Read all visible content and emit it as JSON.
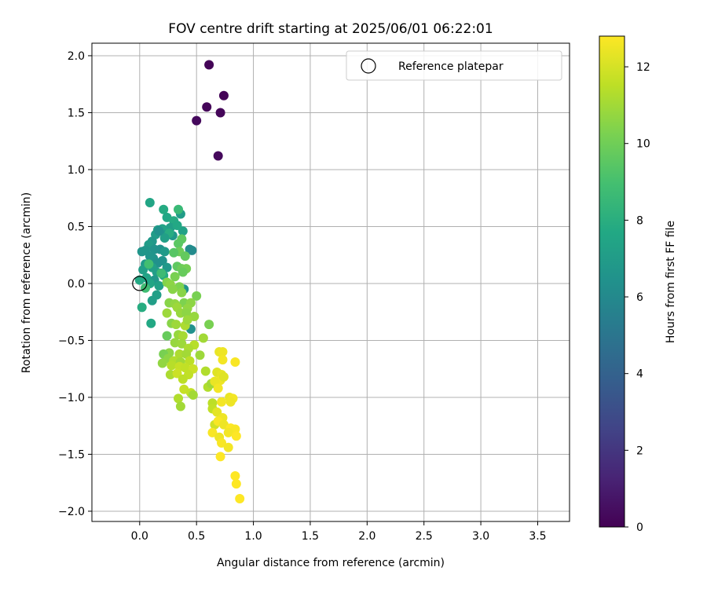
{
  "chart_data": {
    "type": "scatter",
    "title": "FOV centre drift starting at 2025/06/01 06:22:01",
    "xlabel": "Angular distance from reference (arcmin)",
    "ylabel": "Rotation from reference (arcmin)",
    "xlim": [
      -0.42,
      3.78
    ],
    "ylim": [
      -2.09,
      2.11
    ],
    "xticks": [
      "0.0",
      "0.5",
      "1.0",
      "1.5",
      "2.0",
      "2.5",
      "3.0",
      "3.5"
    ],
    "xtick_values": [
      0,
      0.5,
      1.0,
      1.5,
      2.0,
      2.5,
      3.0,
      3.5
    ],
    "yticks": [
      "2.0",
      "1.5",
      "1.0",
      "0.5",
      "0.0",
      "−0.5",
      "−1.0",
      "−1.5",
      "−2.0"
    ],
    "ytick_values": [
      2.0,
      1.5,
      1.0,
      0.5,
      0.0,
      -0.5,
      -1.0,
      -1.5,
      -2.0
    ],
    "grid": true,
    "legend": {
      "position": "top-right",
      "entries": [
        "Reference platepar"
      ]
    },
    "reference": {
      "x": 0.0,
      "y": 0.0
    },
    "colorbar": {
      "label": "Hours from first FF file",
      "colormap": "viridis",
      "range": [
        0,
        12.8
      ],
      "ticks": [
        "0",
        "2",
        "4",
        "6",
        "8",
        "10",
        "12"
      ],
      "tick_values": [
        0,
        2,
        4,
        6,
        8,
        10,
        12
      ]
    },
    "series": [
      {
        "points": [
          [
            0.61,
            1.92,
            0.1
          ],
          [
            0.74,
            1.65,
            0.1
          ],
          [
            0.59,
            1.55,
            0.2
          ],
          [
            0.71,
            1.5,
            0.2
          ],
          [
            0.5,
            1.43,
            0.3
          ],
          [
            0.69,
            1.12,
            0.3
          ],
          [
            0.09,
            0.71,
            7.5
          ],
          [
            0.21,
            0.65,
            7.8
          ],
          [
            0.36,
            0.61,
            7.0
          ],
          [
            0.34,
            0.65,
            8.6
          ],
          [
            0.24,
            0.58,
            7.6
          ],
          [
            0.3,
            0.55,
            7.8
          ],
          [
            0.27,
            0.49,
            7.2
          ],
          [
            0.2,
            0.48,
            7.4
          ],
          [
            0.16,
            0.47,
            7.0
          ],
          [
            0.38,
            0.46,
            7.3
          ],
          [
            0.24,
            0.43,
            6.6
          ],
          [
            0.29,
            0.42,
            6.8
          ],
          [
            0.14,
            0.43,
            7.0
          ],
          [
            0.33,
            0.51,
            7.7
          ],
          [
            0.26,
            0.44,
            7.9
          ],
          [
            0.22,
            0.4,
            7.2
          ],
          [
            0.17,
            0.46,
            6.4
          ],
          [
            0.44,
            0.3,
            6.3
          ],
          [
            0.46,
            0.29,
            6.1
          ],
          [
            0.11,
            0.37,
            6.8
          ],
          [
            0.08,
            0.34,
            7.0
          ],
          [
            0.13,
            0.3,
            6.5
          ],
          [
            0.02,
            0.28,
            6.6
          ],
          [
            0.05,
            0.29,
            6.7
          ],
          [
            0.18,
            0.3,
            6.4
          ],
          [
            0.22,
            0.28,
            6.9
          ],
          [
            0.12,
            0.22,
            6.5
          ],
          [
            0.2,
            0.2,
            6.5
          ],
          [
            0.09,
            0.24,
            6.6
          ],
          [
            0.16,
            0.18,
            6.4
          ],
          [
            0.05,
            0.17,
            6.9
          ],
          [
            0.11,
            0.14,
            7.2
          ],
          [
            0.24,
            0.14,
            6.8
          ],
          [
            0.03,
            0.12,
            7.2
          ],
          [
            0.15,
            0.1,
            7.1
          ],
          [
            0.21,
            0.07,
            7.8
          ],
          [
            0.06,
            0.05,
            7.4
          ],
          [
            0.13,
            0.03,
            6.8
          ],
          [
            0.0,
            0.03,
            7.7
          ],
          [
            0.09,
            0.0,
            7.5
          ],
          [
            0.17,
            -0.02,
            7.3
          ],
          [
            0.05,
            -0.04,
            8.8
          ],
          [
            0.15,
            -0.1,
            7.2
          ],
          [
            0.11,
            -0.15,
            7.1
          ],
          [
            0.02,
            -0.21,
            7.9
          ],
          [
            0.1,
            -0.35,
            7.7
          ],
          [
            0.39,
            -0.05,
            6.5
          ],
          [
            0.45,
            -0.4,
            6.4
          ],
          [
            0.08,
            0.17,
            8.9
          ],
          [
            0.19,
            0.09,
            8.7
          ],
          [
            0.37,
            0.39,
            9.6
          ],
          [
            0.34,
            0.35,
            9.5
          ],
          [
            0.35,
            0.28,
            9.9
          ],
          [
            0.3,
            0.27,
            9.4
          ],
          [
            0.4,
            0.24,
            9.7
          ],
          [
            0.33,
            0.15,
            9.6
          ],
          [
            0.37,
            0.13,
            9.9
          ],
          [
            0.41,
            0.13,
            10.1
          ],
          [
            0.38,
            0.1,
            9.8
          ],
          [
            0.31,
            0.06,
            10.2
          ],
          [
            0.24,
            0.01,
            10.4
          ],
          [
            0.27,
            -0.01,
            10.6
          ],
          [
            0.35,
            -0.03,
            10.3
          ],
          [
            0.29,
            -0.05,
            10.5
          ],
          [
            0.37,
            -0.08,
            10.5
          ],
          [
            0.5,
            -0.11,
            10.2
          ],
          [
            0.26,
            -0.17,
            10.5
          ],
          [
            0.31,
            -0.18,
            10.7
          ],
          [
            0.39,
            -0.17,
            10.3
          ],
          [
            0.45,
            -0.17,
            10.6
          ],
          [
            0.33,
            -0.21,
            10.9
          ],
          [
            0.42,
            -0.22,
            10.7
          ],
          [
            0.24,
            -0.26,
            10.9
          ],
          [
            0.36,
            -0.26,
            10.8
          ],
          [
            0.41,
            -0.26,
            10.6
          ],
          [
            0.48,
            -0.29,
            10.8
          ],
          [
            0.28,
            -0.35,
            10.5
          ],
          [
            0.32,
            -0.36,
            10.9
          ],
          [
            0.4,
            -0.37,
            11.2
          ],
          [
            0.61,
            -0.36,
            10.2
          ],
          [
            0.42,
            -0.32,
            10.9
          ],
          [
            0.24,
            -0.46,
            9.8
          ],
          [
            0.34,
            -0.45,
            10.8
          ],
          [
            0.38,
            -0.46,
            11.1
          ],
          [
            0.56,
            -0.48,
            11.0
          ],
          [
            0.31,
            -0.52,
            10.8
          ],
          [
            0.37,
            -0.53,
            10.9
          ],
          [
            0.48,
            -0.54,
            11.4
          ],
          [
            0.43,
            -0.57,
            11.2
          ],
          [
            0.26,
            -0.61,
            10.6
          ],
          [
            0.21,
            -0.62,
            10.2
          ],
          [
            0.35,
            -0.62,
            11.2
          ],
          [
            0.41,
            -0.62,
            11.0
          ],
          [
            0.53,
            -0.63,
            10.9
          ],
          [
            0.25,
            -0.66,
            10.6
          ],
          [
            0.3,
            -0.68,
            11.3
          ],
          [
            0.36,
            -0.69,
            11.0
          ],
          [
            0.44,
            -0.68,
            11.5
          ],
          [
            0.2,
            -0.7,
            10.7
          ],
          [
            0.28,
            -0.72,
            11.4
          ],
          [
            0.35,
            -0.73,
            11.7
          ],
          [
            0.4,
            -0.74,
            11.6
          ],
          [
            0.47,
            -0.75,
            11.8
          ],
          [
            0.58,
            -0.77,
            11.3
          ],
          [
            0.27,
            -0.8,
            11.2
          ],
          [
            0.33,
            -0.79,
            11.8
          ],
          [
            0.43,
            -0.8,
            11.6
          ],
          [
            0.38,
            -0.84,
            11.5
          ],
          [
            0.6,
            -0.91,
            11.3
          ],
          [
            0.63,
            -0.88,
            11.0
          ],
          [
            0.39,
            -0.93,
            11.7
          ],
          [
            0.45,
            -0.96,
            11.6
          ],
          [
            0.47,
            -0.98,
            11.0
          ],
          [
            0.34,
            -1.01,
            11.3
          ],
          [
            0.64,
            -1.05,
            11.5
          ],
          [
            0.36,
            -1.08,
            11.0
          ],
          [
            0.64,
            -1.1,
            11.6
          ],
          [
            0.66,
            -1.24,
            11.9
          ],
          [
            0.7,
            -0.6,
            12.4
          ],
          [
            0.73,
            -0.6,
            12.5
          ],
          [
            0.73,
            -0.67,
            12.6
          ],
          [
            0.84,
            -0.69,
            12.7
          ],
          [
            0.68,
            -0.78,
            12.2
          ],
          [
            0.72,
            -0.8,
            12.3
          ],
          [
            0.71,
            -0.85,
            12.5
          ],
          [
            0.74,
            -0.82,
            12.2
          ],
          [
            0.66,
            -0.86,
            12.4
          ],
          [
            0.69,
            -0.92,
            12.6
          ],
          [
            0.79,
            -1.0,
            12.4
          ],
          [
            0.82,
            -1.01,
            12.6
          ],
          [
            0.72,
            -1.04,
            12.6
          ],
          [
            0.8,
            -1.04,
            12.5
          ],
          [
            0.68,
            -1.13,
            12.3
          ],
          [
            0.73,
            -1.18,
            12.5
          ],
          [
            0.69,
            -1.21,
            12.7
          ],
          [
            0.74,
            -1.24,
            12.5
          ],
          [
            0.8,
            -1.27,
            12.8
          ],
          [
            0.84,
            -1.28,
            12.7
          ],
          [
            0.78,
            -1.31,
            12.6
          ],
          [
            0.64,
            -1.31,
            12.7
          ],
          [
            0.85,
            -1.34,
            12.8
          ],
          [
            0.7,
            -1.35,
            12.5
          ],
          [
            0.72,
            -1.4,
            12.7
          ],
          [
            0.78,
            -1.44,
            12.6
          ],
          [
            0.71,
            -1.52,
            12.8
          ],
          [
            0.84,
            -1.69,
            12.9
          ],
          [
            0.85,
            -1.76,
            12.9
          ],
          [
            0.88,
            -1.89,
            12.9
          ]
        ]
      }
    ]
  }
}
